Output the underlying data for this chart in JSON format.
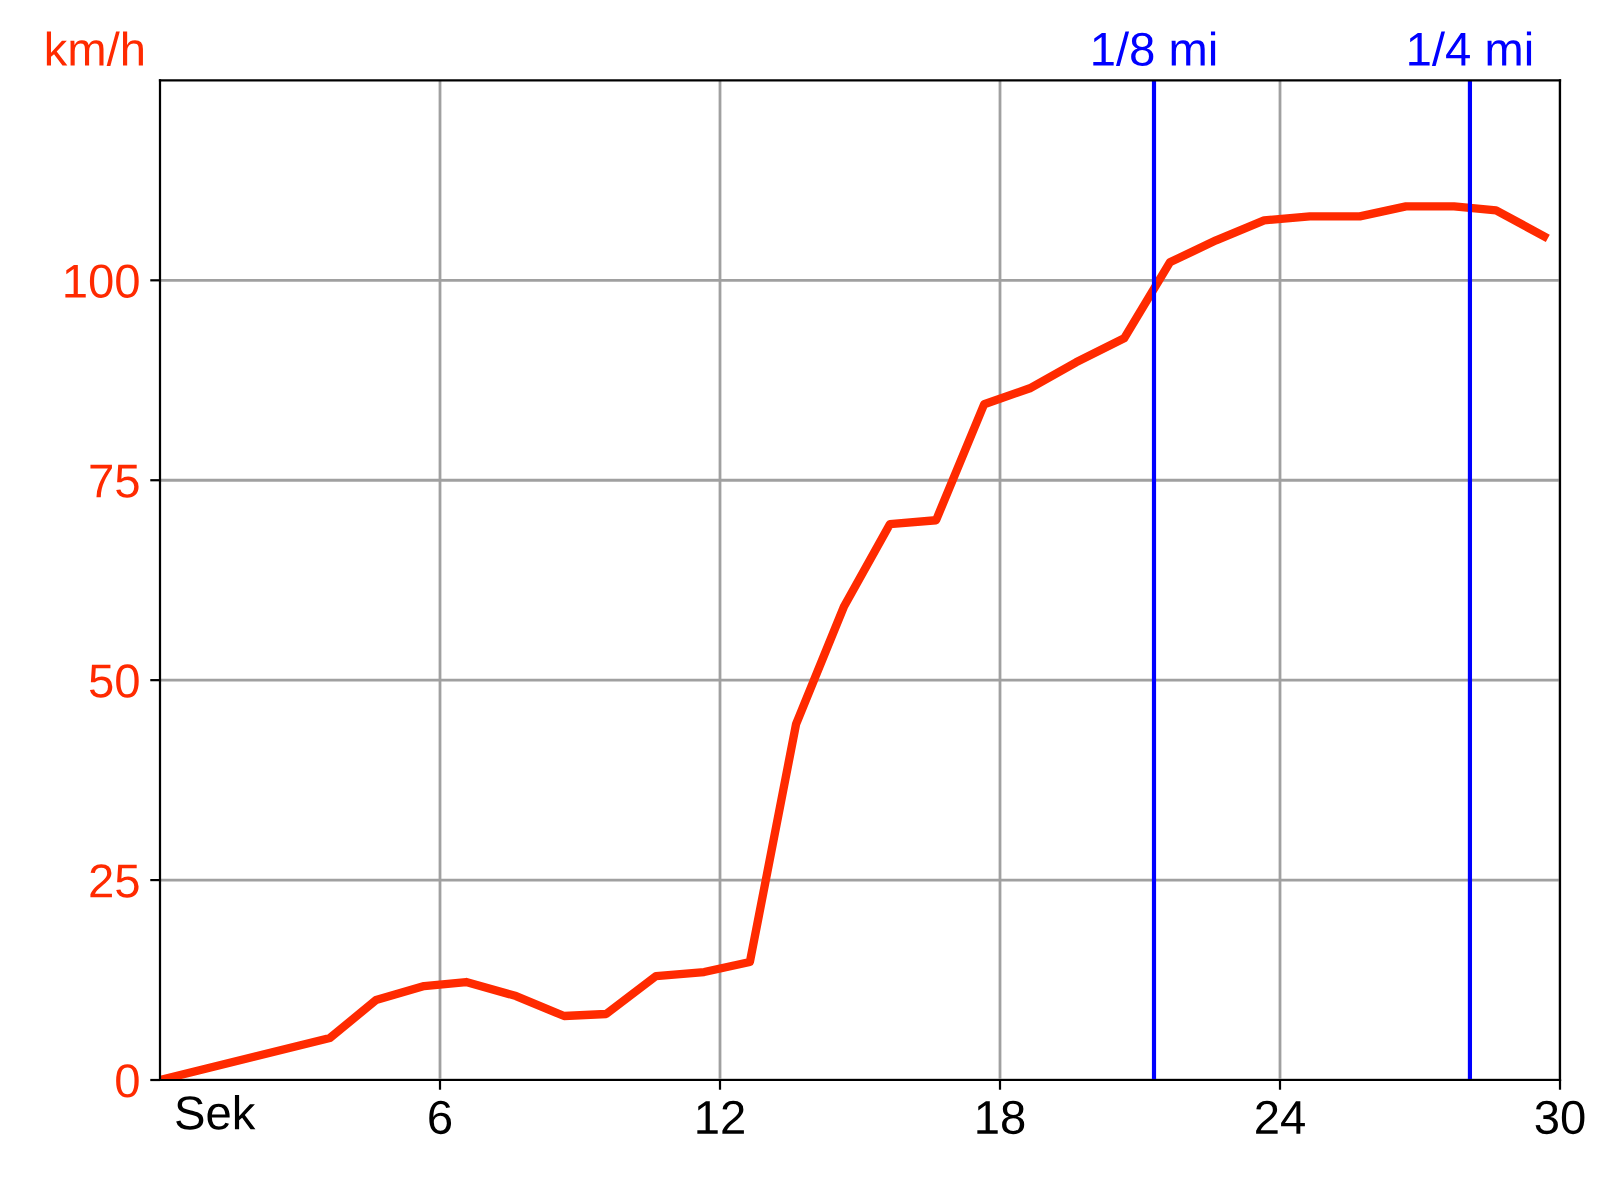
{
  "chart_data": {
    "type": "line",
    "xlabel": "Sek",
    "ylabel": "km/h",
    "xlim": [
      0,
      30
    ],
    "ylim": [
      0,
      125
    ],
    "xticks": [
      6,
      12,
      18,
      24,
      30
    ],
    "yticks": [
      0,
      25,
      50,
      75,
      100
    ],
    "grid": true,
    "series": [
      {
        "color": "#ff2a00",
        "x": [
          0,
          3.64,
          4.63,
          5.66,
          6.56,
          7.63,
          8.66,
          9.56,
          10.63,
          11.66,
          12.64,
          13.63,
          14.66,
          15.64,
          16.63,
          17.66,
          18.64,
          19.63,
          20.66,
          21.64,
          22.63,
          23.66,
          24.64,
          25.71,
          26.7,
          27.73,
          28.63,
          29.66
        ],
        "values": [
          0,
          5.25,
          10,
          11.75,
          12.25,
          10.5,
          8,
          8.25,
          13,
          13.5,
          14.75,
          44.5,
          59.25,
          69.5,
          70,
          84.5,
          86.5,
          89.75,
          92.75,
          102.25,
          105,
          107.5,
          108,
          108,
          109.25,
          109.25,
          108.75,
          105.5
        ]
      }
    ],
    "ref_lines": [
      {
        "axis": "x",
        "value": 21.3,
        "label": "1/8 mi",
        "color": "#0000ff"
      },
      {
        "axis": "x",
        "value": 28.07,
        "label": "1/4 mi",
        "color": "#0000ff"
      }
    ]
  }
}
